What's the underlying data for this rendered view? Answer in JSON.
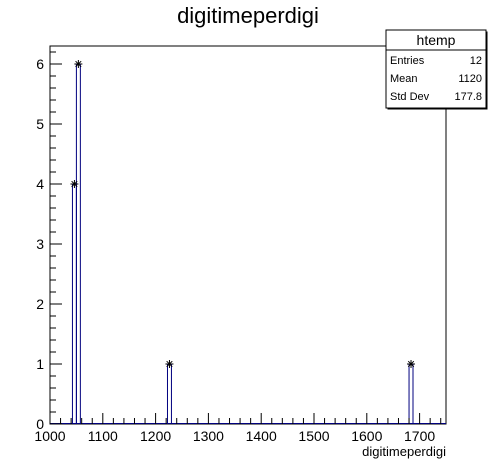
{
  "chart_data": {
    "type": "histogram",
    "title": "digitimeperdigi",
    "xlabel": "digitimeperdigi",
    "ylabel": "",
    "xlim": [
      1000,
      1750
    ],
    "ylim": [
      0,
      6.3
    ],
    "x_ticks": [
      1000,
      1100,
      1200,
      1300,
      1400,
      1500,
      1600,
      1700
    ],
    "y_ticks": [
      0,
      1,
      2,
      3,
      4,
      5,
      6
    ],
    "x_tick_labels": [
      "1000",
      "1100",
      "1200",
      "1300",
      "1400",
      "1500",
      "1600",
      "1700"
    ],
    "y_tick_labels": [
      "0",
      "1",
      "2",
      "3",
      "4",
      "5",
      "6"
    ],
    "bin_width": 7.5,
    "bins": [
      {
        "x_low": 1042.5,
        "x_high": 1050,
        "value": 4
      },
      {
        "x_low": 1050,
        "x_high": 1057.5,
        "value": 6
      },
      {
        "x_low": 1222.5,
        "x_high": 1230,
        "value": 1
      },
      {
        "x_low": 1680,
        "x_high": 1687.5,
        "value": 1
      }
    ],
    "grid": false,
    "line_color": "#00007f",
    "marker": "star",
    "stats_box": {
      "name": "htemp",
      "rows": [
        {
          "label": "Entries",
          "value": "12"
        },
        {
          "label": "Mean",
          "value": "1120"
        },
        {
          "label": "Std Dev",
          "value": "177.8"
        }
      ]
    }
  }
}
